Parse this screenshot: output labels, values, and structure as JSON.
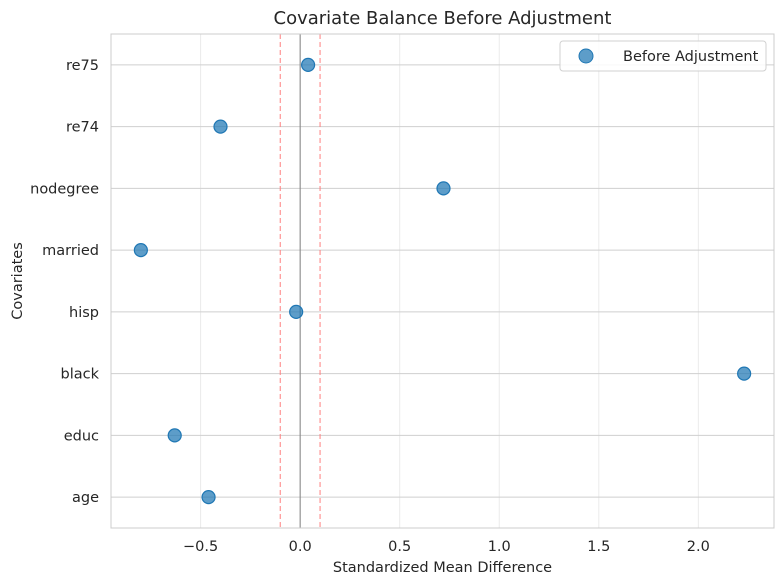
{
  "chart_data": {
    "type": "scatter",
    "title": "Covariate Balance Before Adjustment",
    "xlabel": "Standardized Mean Difference",
    "ylabel": "Covariates",
    "categories": [
      "age",
      "educ",
      "black",
      "hisp",
      "married",
      "nodegree",
      "re74",
      "re75"
    ],
    "series": [
      {
        "name": "Before Adjustment",
        "color": "#1f77b4",
        "values": [
          -0.46,
          -0.63,
          2.23,
          -0.02,
          -0.8,
          0.72,
          -0.4,
          0.04
        ]
      }
    ],
    "xlim": [
      -0.95,
      2.38
    ],
    "xticks": [
      -0.5,
      0.0,
      0.5,
      1.0,
      1.5,
      2.0
    ],
    "xtick_labels": [
      "−0.5",
      "0.0",
      "0.5",
      "1.0",
      "1.5",
      "2.0"
    ],
    "reference_lines": [
      {
        "x": 0.0,
        "style": "solid",
        "color": "#808080"
      },
      {
        "x": -0.1,
        "style": "dashed",
        "color": "#ff7f7f"
      },
      {
        "x": 0.1,
        "style": "dashed",
        "color": "#ff7f7f"
      }
    ],
    "grid": true,
    "legend_position": "top-right"
  }
}
